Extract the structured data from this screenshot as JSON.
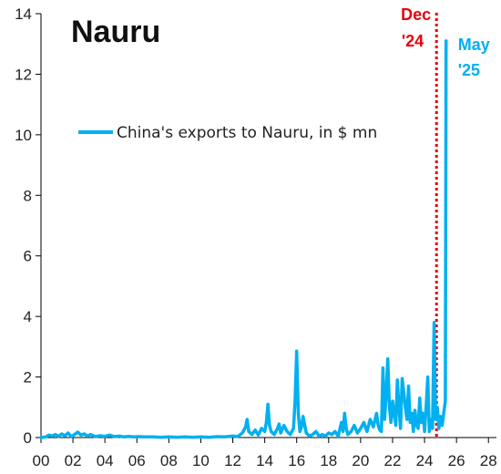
{
  "chart_data": {
    "type": "line",
    "title": "Nauru",
    "xlabel": "",
    "ylabel": "",
    "xlim": [
      0,
      28.5
    ],
    "ylim": [
      0,
      14
    ],
    "x_ticks": [
      "00",
      "02",
      "04",
      "06",
      "08",
      "10",
      "12",
      "14",
      "16",
      "18",
      "20",
      "22",
      "24",
      "26",
      "28"
    ],
    "y_ticks": [
      "0",
      "2",
      "4",
      "6",
      "8",
      "10",
      "12",
      "14"
    ],
    "grid": false,
    "legend_position": "upper-left",
    "series": [
      {
        "name": "China's exports to Nauru, in $ mn",
        "color": "#00b0f0",
        "x": [
          0.0,
          0.3,
          0.5,
          0.7,
          0.9,
          1.1,
          1.3,
          1.5,
          1.7,
          1.9,
          2.1,
          2.3,
          2.5,
          2.7,
          2.9,
          3.1,
          3.4,
          3.7,
          4.0,
          4.3,
          4.6,
          4.9,
          5.2,
          5.5,
          5.8,
          6.1,
          6.5,
          7.0,
          7.5,
          8.0,
          8.5,
          9.0,
          9.5,
          10.0,
          10.5,
          11.0,
          11.5,
          12.0,
          12.3,
          12.6,
          12.8,
          12.9,
          13.0,
          13.2,
          13.4,
          13.6,
          13.8,
          14.0,
          14.1,
          14.2,
          14.3,
          14.4,
          14.6,
          14.8,
          14.9,
          15.0,
          15.2,
          15.4,
          15.6,
          15.8,
          15.9,
          16.0,
          16.1,
          16.2,
          16.3,
          16.4,
          16.6,
          16.8,
          17.0,
          17.2,
          17.4,
          17.6,
          17.8,
          18.0,
          18.2,
          18.4,
          18.6,
          18.8,
          18.9,
          19.0,
          19.1,
          19.2,
          19.4,
          19.6,
          19.8,
          20.0,
          20.2,
          20.4,
          20.6,
          20.8,
          21.0,
          21.1,
          21.2,
          21.3,
          21.4,
          21.5,
          21.6,
          21.7,
          21.8,
          21.9,
          22.0,
          22.1,
          22.2,
          22.3,
          22.4,
          22.5,
          22.6,
          22.7,
          22.8,
          22.9,
          23.0,
          23.1,
          23.2,
          23.3,
          23.4,
          23.5,
          23.6,
          23.7,
          23.8,
          23.9,
          24.0,
          24.1,
          24.2,
          24.3,
          24.4,
          24.5,
          24.6,
          24.7,
          24.8,
          24.9,
          25.0,
          25.1,
          25.2,
          25.3,
          25.35
        ],
        "values": [
          0.0,
          0.02,
          0.08,
          0.05,
          0.1,
          0.04,
          0.12,
          0.06,
          0.15,
          0.03,
          0.1,
          0.18,
          0.08,
          0.12,
          0.05,
          0.1,
          0.03,
          0.06,
          0.04,
          0.08,
          0.03,
          0.05,
          0.02,
          0.04,
          0.02,
          0.03,
          0.02,
          0.02,
          0.01,
          0.02,
          0.01,
          0.02,
          0.01,
          0.02,
          0.01,
          0.03,
          0.02,
          0.05,
          0.03,
          0.15,
          0.35,
          0.6,
          0.2,
          0.1,
          0.25,
          0.08,
          0.3,
          0.2,
          0.5,
          1.1,
          0.4,
          0.2,
          0.1,
          0.3,
          0.45,
          0.15,
          0.4,
          0.2,
          0.1,
          0.3,
          1.2,
          2.85,
          0.8,
          0.2,
          0.35,
          0.7,
          0.15,
          0.05,
          0.1,
          0.2,
          0.05,
          0.1,
          0.05,
          0.15,
          0.1,
          0.2,
          0.05,
          0.5,
          0.2,
          0.8,
          0.3,
          0.1,
          0.2,
          0.4,
          0.15,
          0.3,
          0.5,
          0.2,
          0.6,
          0.35,
          0.8,
          0.4,
          0.25,
          0.2,
          2.3,
          0.6,
          1.4,
          2.6,
          1.0,
          0.5,
          1.2,
          0.8,
          0.4,
          1.9,
          1.0,
          0.3,
          1.95,
          1.5,
          1.0,
          0.6,
          1.7,
          0.5,
          0.8,
          0.2,
          0.9,
          0.4,
          0.3,
          1.3,
          0.5,
          0.8,
          0.2,
          1.0,
          2.0,
          0.2,
          0.6,
          0.3,
          3.8,
          0.6,
          1.0,
          0.3,
          0.7,
          0.4,
          0.8,
          1.2,
          13.1
        ]
      }
    ],
    "annotations": [
      {
        "text_line1": "Dec",
        "text_line2": "'24",
        "x": 24.75,
        "color": "#e8000b",
        "style": "dotted-vertical-line"
      },
      {
        "text_line1": "May",
        "text_line2": "'25",
        "x": 25.35,
        "color": "#00b0f0"
      }
    ]
  }
}
